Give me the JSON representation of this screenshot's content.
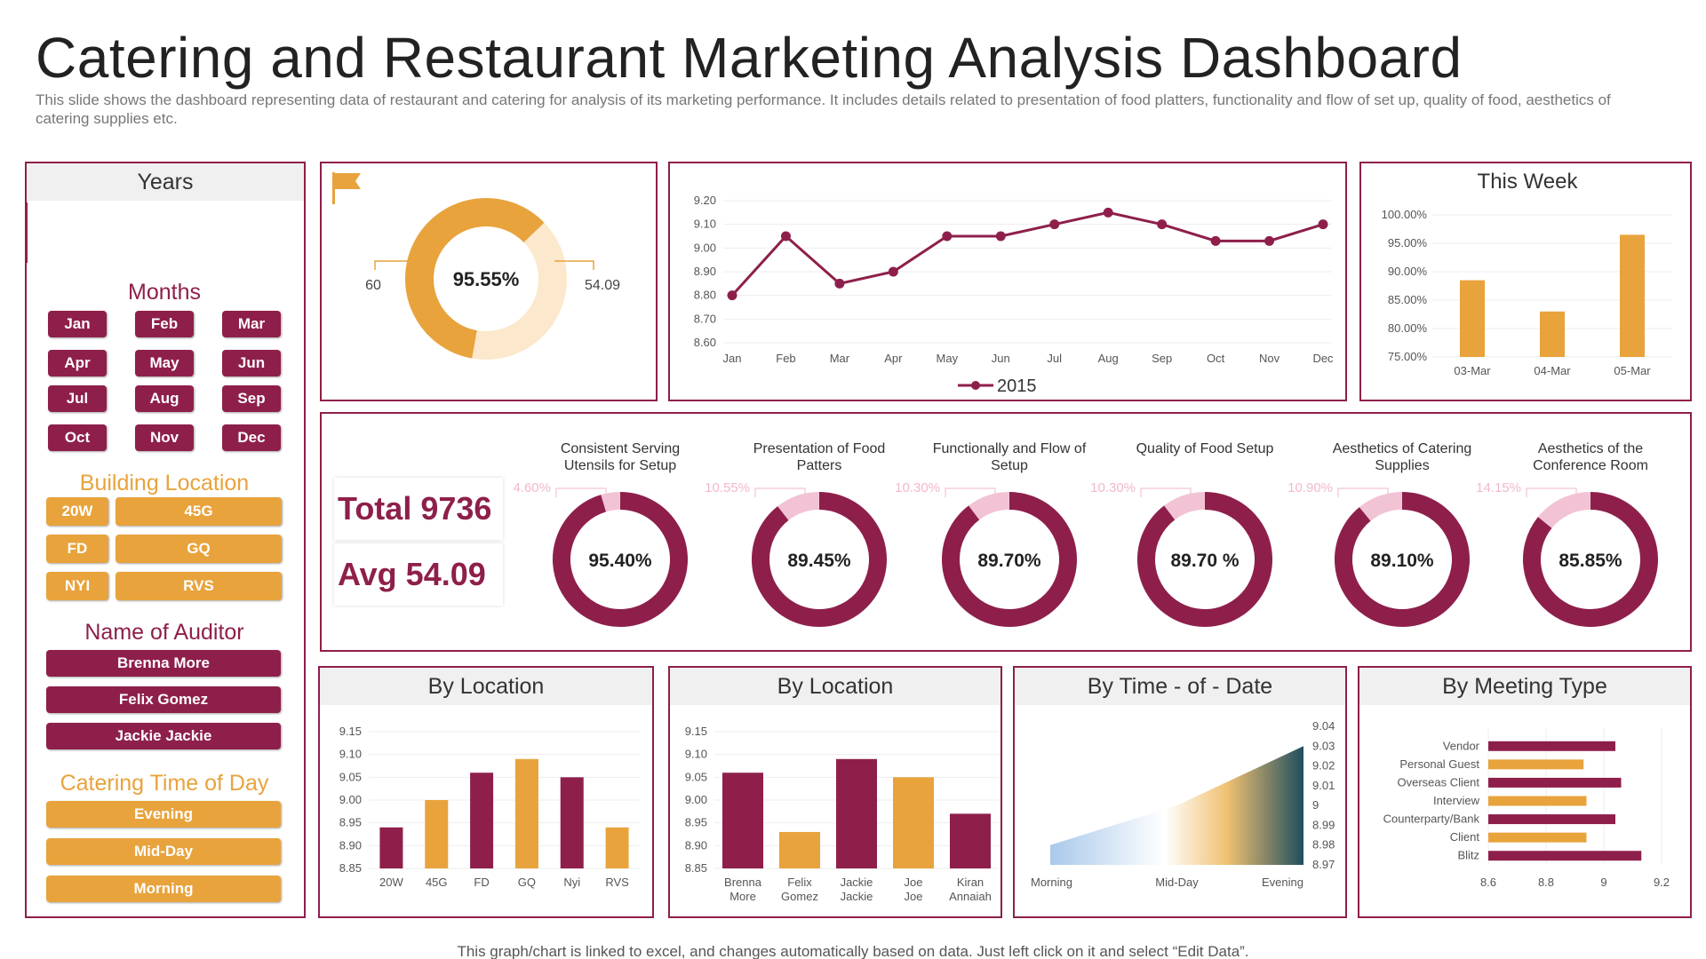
{
  "title": "Catering and Restaurant Marketing Analysis Dashboard",
  "subtitle": "This slide shows the dashboard representing data of restaurant and catering for analysis of its marketing performance. It includes details related to presentation of food platters, functionality and flow of set up, quality of food, aesthetics of catering supplies etc.",
  "footer": "This graph/chart is linked to excel, and changes automatically based on data. Just left click on it and select “Edit Data”.",
  "colors": {
    "maroon": "#8e1f4b",
    "gold": "#e8a33c",
    "cream": "#fce8cc",
    "pink": "#f2c3d4"
  },
  "sidebar": {
    "years_label": "Years",
    "months_label": "Months",
    "months": [
      "Jan",
      "Feb",
      "Mar",
      "Apr",
      "May",
      "Jun",
      "Jul",
      "Aug",
      "Sep",
      "Oct",
      "Nov",
      "Dec"
    ],
    "building_label": "Building Location",
    "buildings": [
      "20W",
      "45G",
      "FD",
      "GQ",
      "NYI",
      "RVS"
    ],
    "auditor_label": "Name of Auditor",
    "auditors": [
      "Brenna More",
      "Felix Gomez",
      "Jackie Jackie"
    ],
    "catering_label": "Catering Time of Day",
    "catering_times": [
      "Evening",
      "Mid-Day",
      "Morning"
    ]
  },
  "summary": {
    "total_label": "Total 9736",
    "avg_label": "Avg 54.09"
  },
  "flag_icon": "flag-icon",
  "chart_data": [
    {
      "id": "main-donut",
      "type": "pie",
      "center_label": "95.55%",
      "left_callout": "60",
      "right_callout": "54.09",
      "values": [
        60,
        40
      ]
    },
    {
      "id": "monthly-line",
      "type": "line",
      "categories": [
        "Jan",
        "Feb",
        "Mar",
        "Apr",
        "May",
        "Jun",
        "Jul",
        "Aug",
        "Sep",
        "Oct",
        "Nov",
        "Dec"
      ],
      "series": [
        {
          "name": "2015",
          "values": [
            8.8,
            9.05,
            8.85,
            8.9,
            9.05,
            9.05,
            9.1,
            9.15,
            9.1,
            9.03,
            9.03,
            9.1
          ]
        }
      ],
      "ylim": [
        8.6,
        9.2
      ],
      "yticks": [
        "8.60",
        "8.70",
        "8.80",
        "8.90",
        "9.00",
        "9.10",
        "9.20"
      ]
    },
    {
      "id": "this-week",
      "type": "bar",
      "title": "This Week",
      "categories": [
        "03-Mar",
        "04-Mar",
        "05-Mar"
      ],
      "values": [
        88.5,
        83,
        96.5
      ],
      "ylim": [
        75,
        100
      ],
      "yticks": [
        "75.00%",
        "80.00%",
        "85.00%",
        "90.00%",
        "95.00%",
        "100.00%"
      ]
    },
    {
      "id": "kpi-donuts",
      "type": "pie",
      "items": [
        {
          "title": "Consistent Serving Utensils for Setup",
          "value_label": "95.40%",
          "remainder_label": "4.60%",
          "remainder": 4.6
        },
        {
          "title": "Presentation of Food Patters",
          "value_label": "89.45%",
          "remainder_label": "10.55%",
          "remainder": 10.55
        },
        {
          "title": "Functionally and Flow of Setup",
          "value_label": "89.70%",
          "remainder_label": "10.30%",
          "remainder": 10.3
        },
        {
          "title": "Quality of Food Setup",
          "value_label": "89.70 %",
          "remainder_label": "10.30%",
          "remainder": 10.3
        },
        {
          "title": "Aesthetics of Catering Supplies",
          "value_label": "89.10%",
          "remainder_label": "10.90%",
          "remainder": 10.9
        },
        {
          "title": "Aesthetics of the Conference Room",
          "value_label": "85.85%",
          "remainder_label": "14.15%",
          "remainder": 14.15
        }
      ]
    },
    {
      "id": "by-location-1",
      "type": "bar",
      "title": "By Location",
      "categories": [
        "20W",
        "45G",
        "FD",
        "GQ",
        "Nyi",
        "RVS"
      ],
      "values": [
        8.94,
        9.0,
        9.06,
        9.09,
        9.05,
        8.94
      ],
      "ylim": [
        8.85,
        9.15
      ],
      "yticks": [
        "8.85",
        "8.90",
        "8.95",
        "9.00",
        "9.05",
        "9.10",
        "9.15"
      ]
    },
    {
      "id": "by-location-2",
      "type": "bar",
      "title": "By Location",
      "categories": [
        "Brenna More",
        "Felix Gomez",
        "Jackie Jackie",
        "Joe Joe",
        "Kiran Annaiah"
      ],
      "values": [
        9.06,
        8.93,
        9.09,
        9.05,
        8.97
      ],
      "ylim": [
        8.85,
        9.15
      ],
      "yticks": [
        "8.85",
        "8.90",
        "8.95",
        "9.00",
        "9.05",
        "9.10",
        "9.15"
      ]
    },
    {
      "id": "by-time",
      "type": "area",
      "title": "By Time - of - Date",
      "categories": [
        "Morning",
        "Mid-Day",
        "Evening"
      ],
      "values": [
        8.98,
        9.0,
        9.03
      ],
      "ylim": [
        8.97,
        9.04
      ],
      "yticks": [
        "8.97",
        "8.98",
        "8.99",
        "9",
        "9.01",
        "9.02",
        "9.03",
        "9.04"
      ]
    },
    {
      "id": "by-meeting",
      "type": "bar",
      "title": "By Meeting Type",
      "categories": [
        "Vendor",
        "Personal Guest",
        "Overseas Client",
        "Interview",
        "Counterparty/Bank",
        "Client",
        "Blitz"
      ],
      "values": [
        9.04,
        8.93,
        9.06,
        8.94,
        9.04,
        8.94,
        9.13
      ],
      "xlim": [
        8.6,
        9.2
      ],
      "xticks": [
        "8.6",
        "8.8",
        "9",
        "9.2"
      ]
    }
  ]
}
